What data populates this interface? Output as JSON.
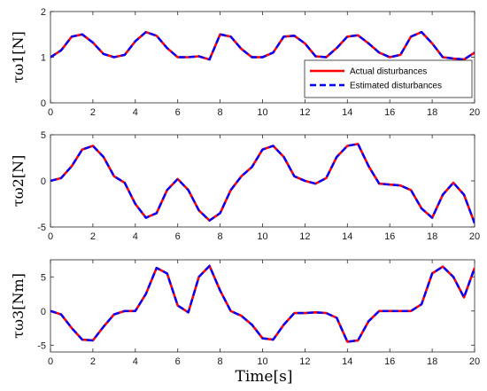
{
  "chart_data": [
    {
      "type": "line",
      "ylabel": "τω1[N]",
      "xlim": [
        0,
        20
      ],
      "ylim": [
        0,
        2
      ],
      "xticks": [
        0,
        2,
        4,
        6,
        8,
        10,
        12,
        14,
        16,
        18,
        20
      ],
      "yticks": [
        0,
        1,
        2
      ],
      "grid": false,
      "legend_position": "bottom-right",
      "series": [
        {
          "name": "Actual disturbances",
          "color": "#ff0000",
          "style": "solid",
          "x": [
            0,
            0.5,
            1,
            1.5,
            2,
            2.5,
            3,
            3.5,
            4,
            4.5,
            5,
            5.5,
            6,
            6.5,
            7,
            7.5,
            8,
            8.5,
            9,
            9.5,
            10,
            10.5,
            11,
            11.5,
            12,
            12.5,
            13,
            13.5,
            14,
            14.5,
            15,
            15.5,
            16,
            16.5,
            17,
            17.5,
            18,
            18.5,
            19,
            19.5,
            20
          ],
          "values": [
            1.0,
            1.15,
            1.45,
            1.5,
            1.32,
            1.07,
            1.0,
            1.05,
            1.35,
            1.55,
            1.47,
            1.2,
            1.0,
            1.0,
            1.02,
            0.95,
            1.5,
            1.45,
            1.18,
            1.0,
            1.0,
            1.1,
            1.45,
            1.47,
            1.3,
            1.02,
            1.0,
            1.2,
            1.45,
            1.48,
            1.3,
            1.1,
            1.0,
            1.05,
            1.45,
            1.55,
            1.3,
            1.0,
            0.97,
            0.95,
            1.1
          ]
        },
        {
          "name": "Estimated disturbances",
          "color": "#0000ff",
          "style": "dashed",
          "x": [
            0,
            0.5,
            1,
            1.5,
            2,
            2.5,
            3,
            3.5,
            4,
            4.5,
            5,
            5.5,
            6,
            6.5,
            7,
            7.5,
            8,
            8.5,
            9,
            9.5,
            10,
            10.5,
            11,
            11.5,
            12,
            12.5,
            13,
            13.5,
            14,
            14.5,
            15,
            15.5,
            16,
            16.5,
            17,
            17.5,
            18,
            18.5,
            19,
            19.5,
            20
          ],
          "values": [
            1.0,
            1.15,
            1.45,
            1.5,
            1.32,
            1.07,
            1.0,
            1.05,
            1.35,
            1.55,
            1.47,
            1.2,
            1.0,
            1.0,
            1.02,
            0.95,
            1.5,
            1.45,
            1.18,
            1.0,
            1.0,
            1.1,
            1.45,
            1.47,
            1.3,
            1.02,
            1.0,
            1.2,
            1.45,
            1.48,
            1.3,
            1.1,
            1.0,
            1.05,
            1.45,
            1.55,
            1.3,
            1.0,
            0.97,
            0.95,
            1.1
          ]
        }
      ]
    },
    {
      "type": "line",
      "ylabel": "τω2[N]",
      "xlim": [
        0,
        20
      ],
      "ylim": [
        -5,
        5
      ],
      "xticks": [
        0,
        2,
        4,
        6,
        8,
        10,
        12,
        14,
        16,
        18,
        20
      ],
      "yticks": [
        -5,
        0,
        5
      ],
      "grid": false,
      "series": [
        {
          "name": "Actual disturbances",
          "color": "#ff0000",
          "style": "solid",
          "x": [
            0,
            0.5,
            1,
            1.5,
            2,
            2.5,
            3,
            3.5,
            4,
            4.5,
            5,
            5.5,
            6,
            6.5,
            7,
            7.5,
            8,
            8.5,
            9,
            9.5,
            10,
            10.5,
            11,
            11.5,
            12,
            12.5,
            13,
            13.5,
            14,
            14.5,
            15,
            15.5,
            16,
            16.5,
            17,
            17.5,
            18,
            18.5,
            19,
            19.5,
            20
          ],
          "values": [
            0,
            0.3,
            1.6,
            3.4,
            3.8,
            2.6,
            0.5,
            -0.2,
            -2.5,
            -4.0,
            -3.5,
            -1.0,
            0.2,
            -1.0,
            -3.2,
            -4.3,
            -3.5,
            -1.0,
            0.5,
            1.5,
            3.4,
            3.8,
            2.6,
            0.5,
            0.0,
            -0.3,
            0.3,
            2.6,
            3.8,
            4.0,
            1.6,
            -0.3,
            -0.4,
            -0.5,
            -1.0,
            -3.0,
            -4.0,
            -1.5,
            -0.2,
            -1.5,
            -4.6
          ]
        },
        {
          "name": "Estimated disturbances",
          "color": "#0000ff",
          "style": "dashed",
          "x": [
            0,
            0.5,
            1,
            1.5,
            2,
            2.5,
            3,
            3.5,
            4,
            4.5,
            5,
            5.5,
            6,
            6.5,
            7,
            7.5,
            8,
            8.5,
            9,
            9.5,
            10,
            10.5,
            11,
            11.5,
            12,
            12.5,
            13,
            13.5,
            14,
            14.5,
            15,
            15.5,
            16,
            16.5,
            17,
            17.5,
            18,
            18.5,
            19,
            19.5,
            20
          ],
          "values": [
            0,
            0.3,
            1.6,
            3.4,
            3.8,
            2.6,
            0.5,
            -0.2,
            -2.5,
            -4.0,
            -3.5,
            -1.0,
            0.2,
            -1.0,
            -3.2,
            -4.3,
            -3.5,
            -1.0,
            0.5,
            1.5,
            3.4,
            3.8,
            2.6,
            0.5,
            0.0,
            -0.3,
            0.3,
            2.6,
            3.8,
            4.0,
            1.6,
            -0.3,
            -0.4,
            -0.5,
            -1.0,
            -3.0,
            -4.0,
            -1.5,
            -0.2,
            -1.5,
            -4.6
          ]
        }
      ]
    },
    {
      "type": "line",
      "ylabel": "τω3[Nm]",
      "xlabel": "Time[s]",
      "xlim": [
        0,
        20
      ],
      "ylim": [
        -6,
        7.5
      ],
      "xticks": [
        0,
        2,
        4,
        6,
        8,
        10,
        12,
        14,
        16,
        18,
        20
      ],
      "yticks": [
        -5,
        0,
        5
      ],
      "grid": false,
      "series": [
        {
          "name": "Actual disturbances",
          "color": "#ff0000",
          "style": "solid",
          "x": [
            0,
            0.5,
            1,
            1.5,
            2,
            2.5,
            3,
            3.5,
            4,
            4.5,
            5,
            5.5,
            6,
            6.5,
            7,
            7.5,
            8,
            8.5,
            9,
            9.5,
            10,
            10.5,
            11,
            11.5,
            12,
            12.5,
            13,
            13.5,
            14,
            14.5,
            15,
            15.5,
            16,
            16.5,
            17,
            17.5,
            18,
            18.5,
            19,
            19.5,
            20
          ],
          "values": [
            0,
            -0.5,
            -2.5,
            -4.2,
            -4.3,
            -2.3,
            -0.5,
            0,
            0,
            2.5,
            6.3,
            5.5,
            0.8,
            -0.2,
            5.0,
            6.6,
            3.0,
            0,
            -0.7,
            -2.0,
            -4.0,
            -4.2,
            -2.0,
            -0.3,
            -0.3,
            -0.2,
            -0.3,
            -1.0,
            -4.5,
            -4.3,
            -1.5,
            0,
            0,
            0,
            0,
            1.0,
            5.5,
            6.5,
            5.0,
            2.0,
            6.3
          ]
        },
        {
          "name": "Estimated disturbances",
          "color": "#0000ff",
          "style": "dashed",
          "x": [
            0,
            0.5,
            1,
            1.5,
            2,
            2.5,
            3,
            3.5,
            4,
            4.5,
            5,
            5.5,
            6,
            6.5,
            7,
            7.5,
            8,
            8.5,
            9,
            9.5,
            10,
            10.5,
            11,
            11.5,
            12,
            12.5,
            13,
            13.5,
            14,
            14.5,
            15,
            15.5,
            16,
            16.5,
            17,
            17.5,
            18,
            18.5,
            19,
            19.5,
            20
          ],
          "values": [
            0,
            -0.5,
            -2.5,
            -4.2,
            -4.3,
            -2.3,
            -0.5,
            0,
            0,
            2.5,
            6.3,
            5.5,
            0.8,
            -0.2,
            5.0,
            6.6,
            3.0,
            0,
            -0.7,
            -2.0,
            -4.0,
            -4.2,
            -2.0,
            -0.3,
            -0.3,
            -0.2,
            -0.3,
            -1.0,
            -4.5,
            -4.3,
            -1.5,
            0,
            0,
            0,
            0,
            1.0,
            5.5,
            6.5,
            5.0,
            2.0,
            6.3
          ]
        }
      ]
    }
  ],
  "legend": {
    "items": [
      {
        "label": "Actual disturbances",
        "color": "#ff0000"
      },
      {
        "label": "Estimated disturbances",
        "color": "#0000ff"
      }
    ]
  }
}
